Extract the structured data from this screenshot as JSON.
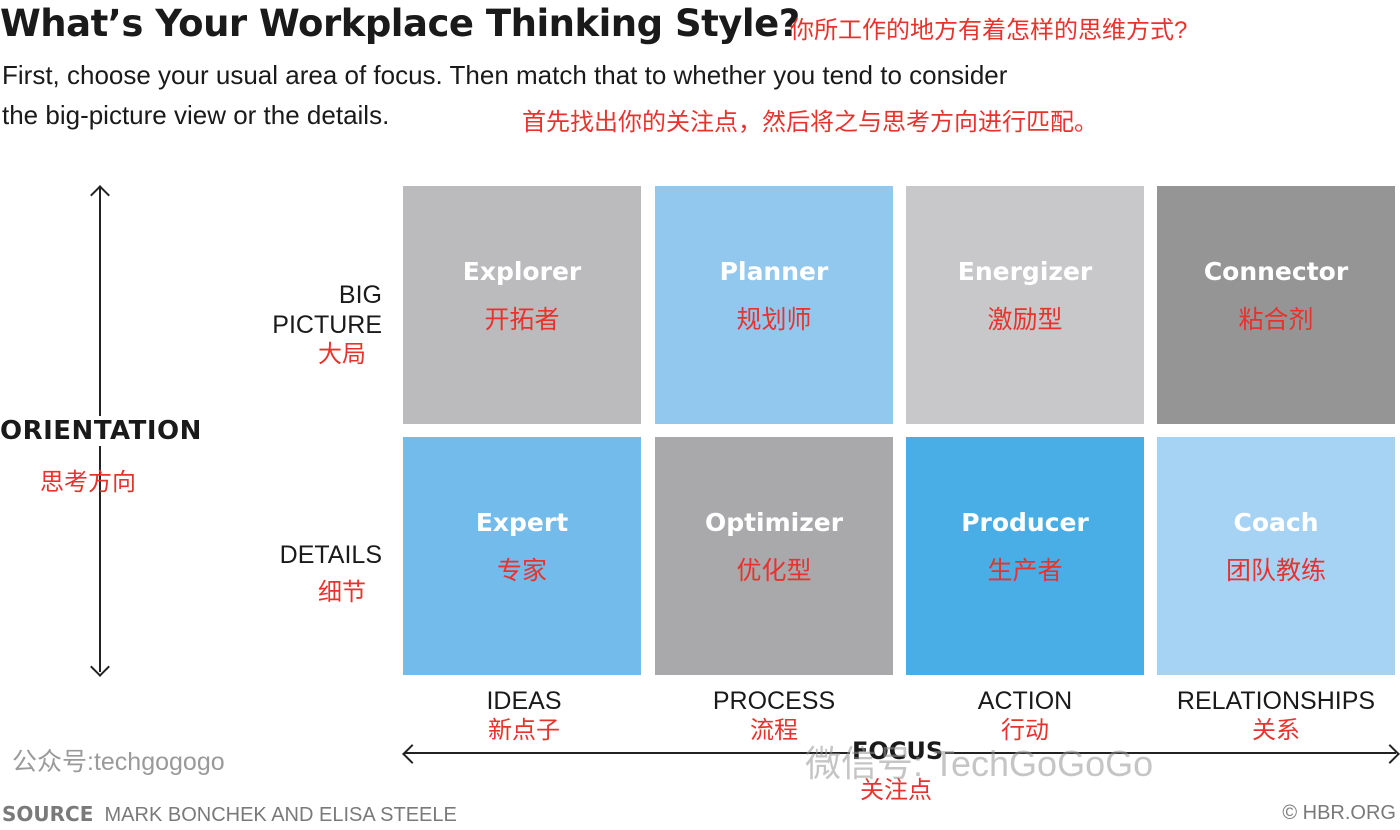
{
  "header": {
    "title": "What’s Your Workplace Thinking Style?",
    "title_cn": "你所工作的地方有着怎样的思维方式?",
    "subtitle_line1": "First, choose your usual area of focus. Then match that to whether you tend to consider",
    "subtitle_line2": "the big-picture view or the details.",
    "subtitle_cn": "首先找出你的关注点，然后将之与思考方向进行匹配。"
  },
  "axes": {
    "vertical": {
      "label": "ORIENTATION",
      "label_cn": "思考方向"
    },
    "horizontal": {
      "label": "FOCUS",
      "label_cn": "关注点"
    }
  },
  "rows": [
    {
      "label_line1": "BIG",
      "label_line2": "PICTURE",
      "label_cn": "大局"
    },
    {
      "label_line1": "DETAILS",
      "label_line2": "",
      "label_cn": "细节"
    }
  ],
  "columns": [
    {
      "label": "IDEAS",
      "label_cn": "新点子"
    },
    {
      "label": "PROCESS",
      "label_cn": "流程"
    },
    {
      "label": "ACTION",
      "label_cn": "行动"
    },
    {
      "label": "RELATIONSHIPS",
      "label_cn": "关系"
    }
  ],
  "cells": [
    {
      "name": "Explorer",
      "name_cn": "开拓者",
      "color": "#bbbbbd"
    },
    {
      "name": "Planner",
      "name_cn": "规划师",
      "color": "#93c8ee"
    },
    {
      "name": "Energizer",
      "name_cn": "激励型",
      "color": "#c8c8ca"
    },
    {
      "name": "Connector",
      "name_cn": "粘合剂",
      "color": "#959596"
    },
    {
      "name": "Expert",
      "name_cn": "专家",
      "color": "#72bbea"
    },
    {
      "name": "Optimizer",
      "name_cn": "优化型",
      "color": "#a9a9ab"
    },
    {
      "name": "Producer",
      "name_cn": "生产者",
      "color": "#4aaee6"
    },
    {
      "name": "Coach",
      "name_cn": "团队教练",
      "color": "#a6d3f3"
    }
  ],
  "watermarks": {
    "left": "公众号:techgogogo",
    "right": "微信号: TechGoGoGo"
  },
  "footer": {
    "source_label": "SOURCE",
    "source_text": "MARK BONCHEK AND ELISA STEELE",
    "copyright": "© HBR.ORG"
  }
}
